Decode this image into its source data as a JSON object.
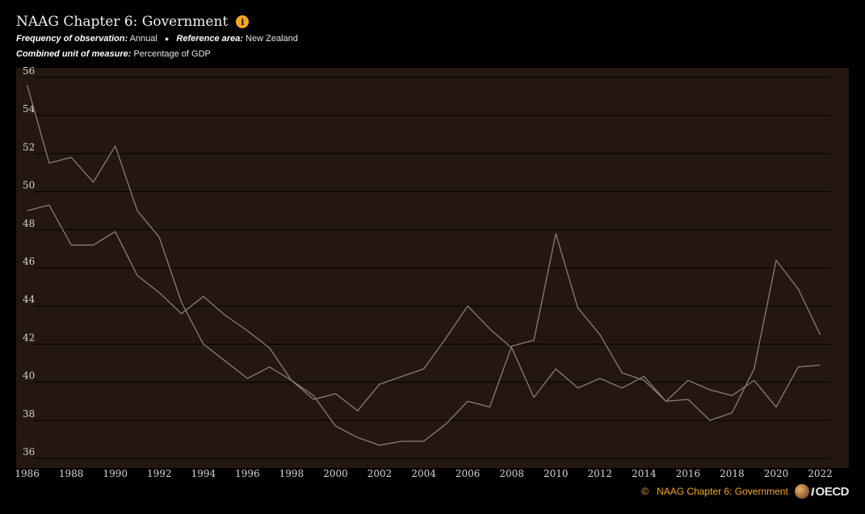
{
  "header": {
    "title": "NAAG Chapter 6: Government",
    "info_icon": "info-icon",
    "filters": [
      {
        "label": "Frequency of observation:",
        "value": "Annual"
      },
      {
        "label": "Reference area:",
        "value": "New Zealand"
      },
      {
        "label": "Combined unit of measure:",
        "value": "Percentage of GDP"
      }
    ]
  },
  "footer": {
    "copyright_symbol": "©",
    "source": "NAAG Chapter 6: Government",
    "logo_text": "OECD",
    "logo_icon": "oecd-logo"
  },
  "colors": {
    "background": "#000000",
    "plot_background": "#231710",
    "line": "#8a7d73",
    "grid": "#000000",
    "tick_label": "#d9d4cf",
    "accent": "#f6a623"
  },
  "chart_data": {
    "type": "line",
    "title": "NAAG Chapter 6: Government",
    "xlabel": "",
    "ylabel": "",
    "ylim": [
      35.5,
      56.5
    ],
    "yticks": [
      36,
      38,
      40,
      42,
      44,
      46,
      48,
      50,
      52,
      54,
      56
    ],
    "xlim": [
      1985.5,
      2023.3
    ],
    "xticks": [
      1986,
      1988,
      1990,
      1992,
      1994,
      1996,
      1998,
      2000,
      2002,
      2004,
      2006,
      2008,
      2010,
      2012,
      2014,
      2016,
      2018,
      2020,
      2022
    ],
    "grid": true,
    "legend": "none",
    "x": [
      1986,
      1987,
      1988,
      1989,
      1990,
      1991,
      1992,
      1993,
      1994,
      1995,
      1996,
      1997,
      1998,
      1999,
      2000,
      2001,
      2002,
      2003,
      2004,
      2005,
      2006,
      2007,
      2008,
      2009,
      2010,
      2011,
      2012,
      2013,
      2014,
      2015,
      2016,
      2017,
      2018,
      2019,
      2020,
      2021,
      2022
    ],
    "series": [
      {
        "values": [
          55.6,
          51.5,
          51.8,
          50.5,
          52.4,
          49.0,
          47.6,
          44.2,
          42.0,
          41.1,
          40.2,
          40.8,
          40.1,
          39.3,
          37.7,
          37.1,
          36.7,
          36.9,
          36.9,
          37.8,
          39.0,
          38.7,
          41.9,
          42.2,
          47.8,
          43.9,
          42.5,
          40.5,
          40.1,
          39.0,
          39.1,
          38.0,
          38.4,
          40.7,
          46.4,
          44.9,
          42.5
        ]
      },
      {
        "values": [
          49.0,
          49.3,
          47.2,
          47.2,
          47.9,
          45.6,
          44.7,
          43.6,
          44.5,
          43.5,
          42.7,
          41.8,
          40.1,
          39.1,
          39.4,
          38.5,
          39.9,
          40.3,
          40.7,
          42.3,
          44.0,
          42.8,
          41.8,
          39.2,
          40.7,
          39.7,
          40.2,
          39.7,
          40.3,
          39.0,
          40.1,
          39.6,
          39.3,
          40.1,
          38.7,
          40.8,
          40.9
        ]
      }
    ]
  }
}
